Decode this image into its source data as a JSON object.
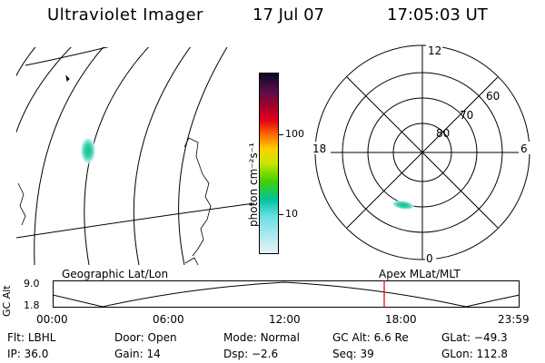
{
  "header": {
    "title": "Ultraviolet Imager",
    "date": "17 Jul 07",
    "time": "17:05:03 UT"
  },
  "colorbar": {
    "label": "photon cm⁻²s⁻¹",
    "ticks": [
      "100",
      "10"
    ],
    "colors": [
      "#0b0724",
      "#5a0f4a",
      "#a3002a",
      "#e40018",
      "#ff6a00",
      "#ffd000",
      "#c8e600",
      "#40d000",
      "#00c49a",
      "#6fe0e6",
      "#e8f2f6"
    ]
  },
  "polar": {
    "mlt_labels": {
      "top": "12",
      "left": "18",
      "right": "6",
      "bottom": "0"
    },
    "lat_labels": [
      "60",
      "70",
      "80"
    ]
  },
  "timeline": {
    "left_label": "Geographic Lat/Lon",
    "right_label": "Apex MLat/MLT",
    "axis_title": "GC Alt",
    "y_top": "9.0",
    "y_bottom": "1.8",
    "x_ticks": [
      "00:00",
      "06:00",
      "12:00",
      "18:00",
      "23:59"
    ]
  },
  "info": {
    "row1": [
      {
        "label": "Flt:",
        "value": "LBHL"
      },
      {
        "label": "Door:",
        "value": "Open"
      },
      {
        "label": "Mode:",
        "value": "Normal"
      },
      {
        "label": "GC Alt:",
        "value": "6.6 Re"
      },
      {
        "label": "GLat:",
        "value": "−49.3"
      }
    ],
    "row2": [
      {
        "label": "IP:",
        "value": "36.0"
      },
      {
        "label": "Gain:",
        "value": "14"
      },
      {
        "label": "Dsp:",
        "value": "−2.6"
      },
      {
        "label": "Seq:",
        "value": "39"
      },
      {
        "label": "GLon:",
        "value": "112.8"
      }
    ]
  }
}
